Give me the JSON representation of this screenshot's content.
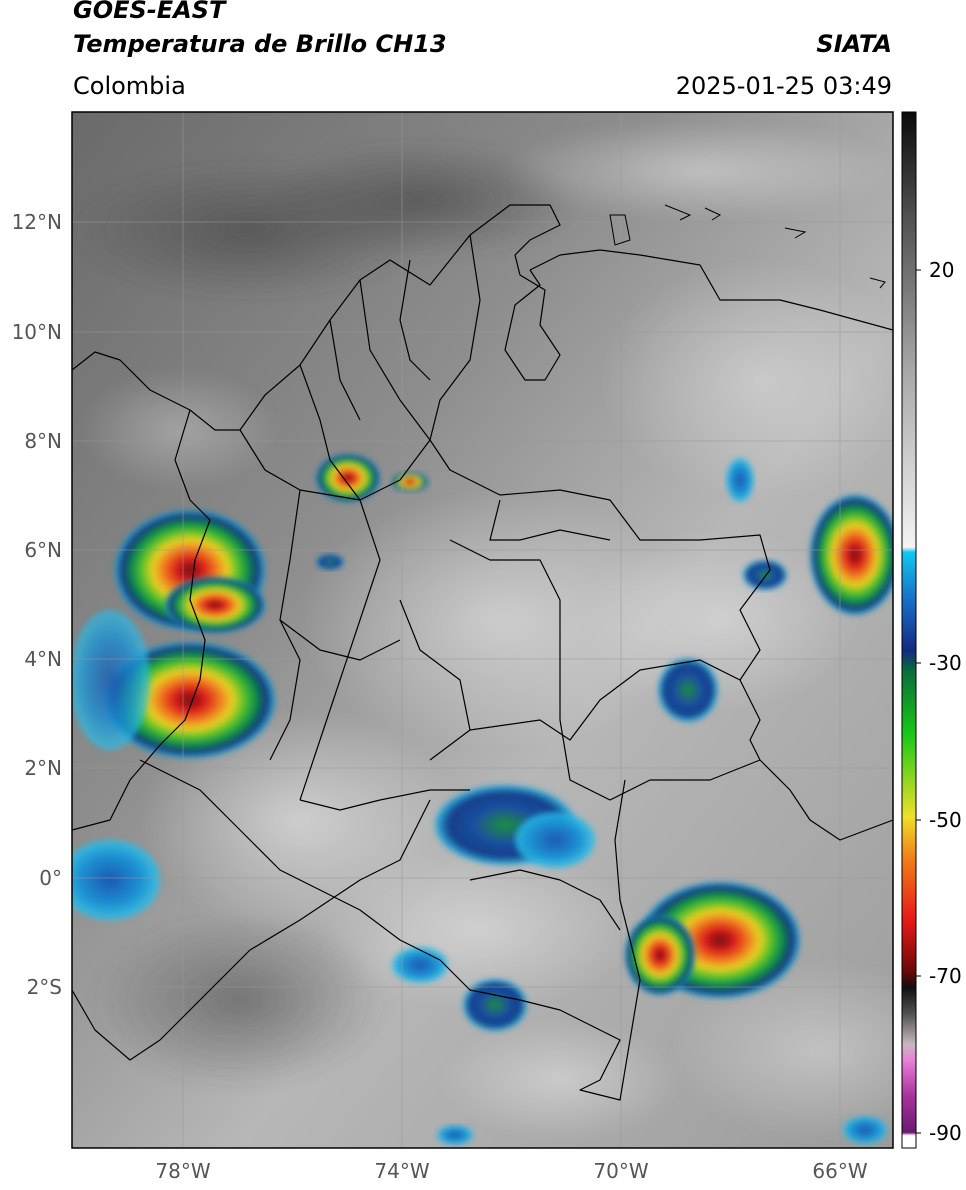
{
  "header": {
    "satellite": "GOES-EAST",
    "product": "Temperatura de Brillo CH13",
    "region": "Colombia",
    "org": "SIATA",
    "datetime": "2025-01-25 03:49"
  },
  "map": {
    "lat_ticks": [
      "12°N",
      "10°N",
      "8°N",
      "6°N",
      "4°N",
      "2°N",
      "0°",
      "2°S"
    ],
    "lon_ticks": [
      "78°W",
      "74°W",
      "70°W",
      "66°W"
    ],
    "colors": {
      "frame": "#000000",
      "grid": "#9a9a9a",
      "boundary": "#000000"
    }
  },
  "colorbar": {
    "ticks": [
      "20",
      "-30",
      "-50",
      "-70",
      "-90"
    ],
    "unit_range": [
      -92,
      35
    ]
  },
  "storm_cells": [
    {
      "name": "north-antioquia-cell",
      "intensity": "strong"
    },
    {
      "name": "santander-cell",
      "intensity": "moderate"
    },
    {
      "name": "pacific-choco-cell",
      "intensity": "strong"
    },
    {
      "name": "pacific-cauca-cell",
      "intensity": "strong"
    },
    {
      "name": "amazonas-east-cell",
      "intensity": "strong"
    },
    {
      "name": "venezuela-east-cell",
      "intensity": "strong"
    },
    {
      "name": "guaviare-vaupes-cell",
      "intensity": "weak"
    },
    {
      "name": "amazonas-south-cell",
      "intensity": "weak"
    },
    {
      "name": "vichada-cell",
      "intensity": "weak"
    }
  ]
}
